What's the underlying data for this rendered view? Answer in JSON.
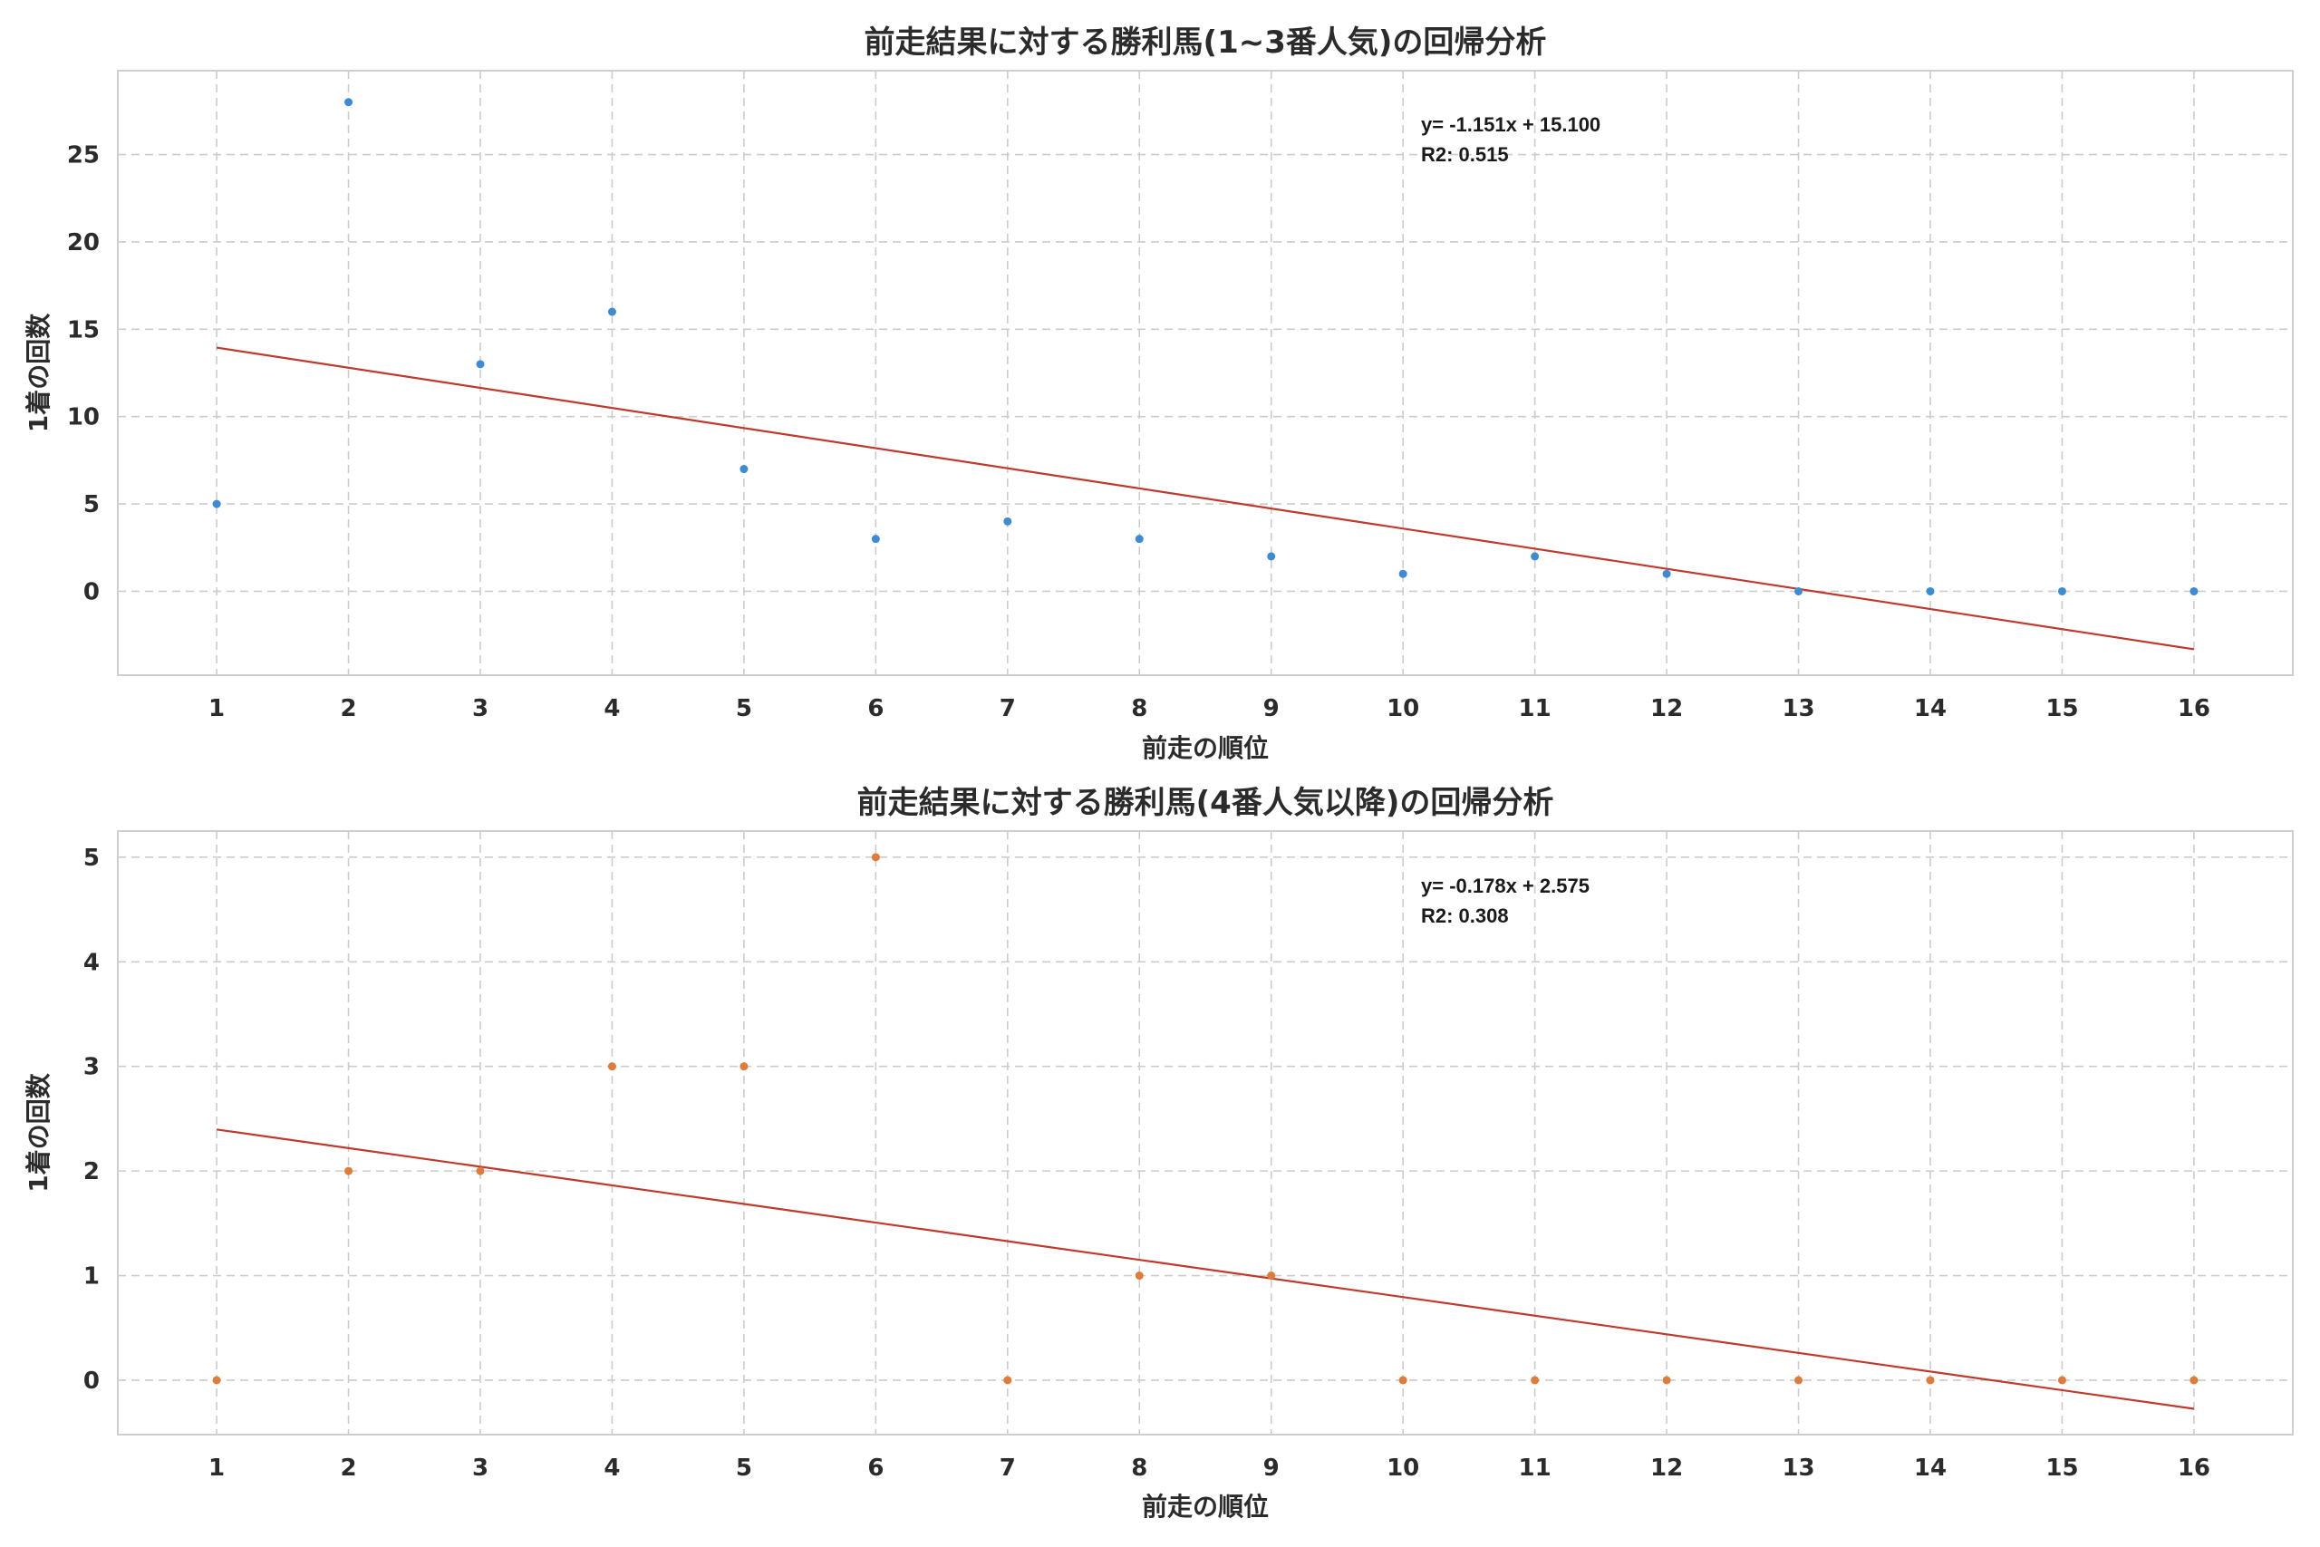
{
  "chart_data": [
    {
      "type": "scatter",
      "title": "前走結果に対する勝利馬(1~3番人気)の回帰分析",
      "xlabel": "前走の順位",
      "ylabel": "1着の回数",
      "x": [
        1,
        2,
        3,
        4,
        5,
        6,
        7,
        8,
        9,
        10,
        11,
        12,
        13,
        14,
        15,
        16
      ],
      "y": [
        5,
        28,
        13,
        16,
        7,
        3,
        4,
        3,
        2,
        1,
        2,
        1,
        0,
        0,
        0,
        0
      ],
      "x_ticks": [
        "1",
        "2",
        "3",
        "4",
        "5",
        "6",
        "7",
        "8",
        "9",
        "10",
        "11",
        "12",
        "13",
        "14",
        "15",
        "16"
      ],
      "y_ticks": [
        "0",
        "5",
        "10",
        "15",
        "20",
        "25"
      ],
      "y_tick_values": [
        0,
        5,
        10,
        15,
        20,
        25
      ],
      "xlim": [
        0.25,
        16.75
      ],
      "ylim": [
        -4.8,
        29.8
      ],
      "regression": {
        "slope": -1.151,
        "intercept": 15.1,
        "color": "#c0392b"
      },
      "annotation_lines": [
        "y= -1.151x + 15.100",
        "R2: 0.515"
      ],
      "point_color": "#3d8bd4",
      "grid": true
    },
    {
      "type": "scatter",
      "title": "前走結果に対する勝利馬(4番人気以降)の回帰分析",
      "xlabel": "前走の順位",
      "ylabel": "1着の回数",
      "x": [
        1,
        2,
        3,
        4,
        5,
        6,
        7,
        8,
        9,
        10,
        11,
        12,
        13,
        14,
        15,
        16
      ],
      "y": [
        0,
        2,
        2,
        3,
        3,
        5,
        0,
        1,
        1,
        0,
        0,
        0,
        0,
        0,
        0,
        0
      ],
      "x_ticks": [
        "1",
        "2",
        "3",
        "4",
        "5",
        "6",
        "7",
        "8",
        "9",
        "10",
        "11",
        "12",
        "13",
        "14",
        "15",
        "16"
      ],
      "y_ticks": [
        "0",
        "1",
        "2",
        "3",
        "4",
        "5"
      ],
      "y_tick_values": [
        0,
        1,
        2,
        3,
        4,
        5
      ],
      "xlim": [
        0.25,
        16.75
      ],
      "ylim": [
        -0.52,
        5.25
      ],
      "regression": {
        "slope": -0.178,
        "intercept": 2.575,
        "color": "#c0392b"
      },
      "annotation_lines": [
        "y= -0.178x + 2.575",
        "R2: 0.308"
      ],
      "point_color": "#e07b39",
      "grid": true
    }
  ]
}
